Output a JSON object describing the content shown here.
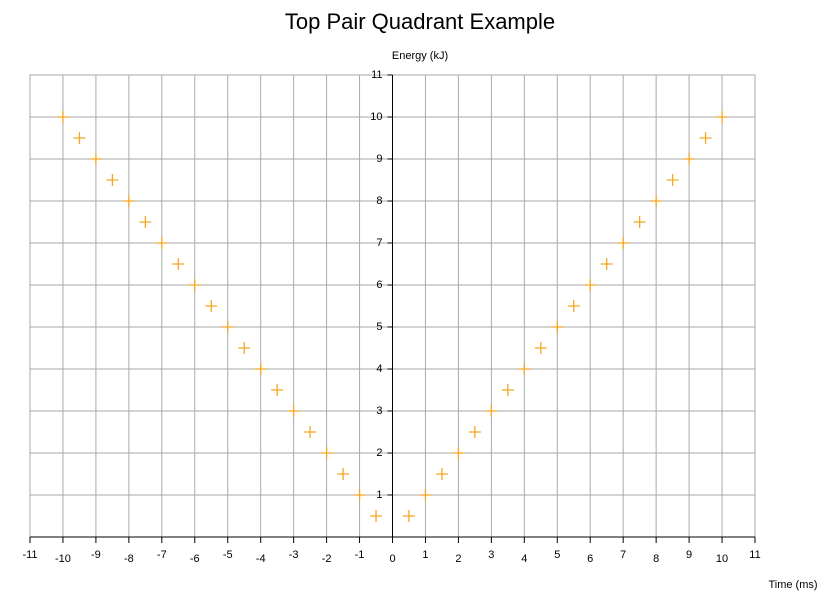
{
  "chart_data": {
    "type": "scatter",
    "title": "Top Pair Quadrant Example",
    "x_label": "Time (ms)",
    "y_label": "Energy (kJ)",
    "x": [
      -10,
      -9.5,
      -9,
      -8.5,
      -8,
      -7.5,
      -7,
      -6.5,
      -6,
      -5.5,
      -5,
      -4.5,
      -4,
      -3.5,
      -3,
      -2.5,
      -2,
      -1.5,
      -1,
      -0.5,
      0.5,
      1,
      1.5,
      2,
      2.5,
      3,
      3.5,
      4,
      4.5,
      5,
      5.5,
      6,
      6.5,
      7,
      7.5,
      8,
      8.5,
      9,
      9.5,
      10
    ],
    "values": [
      10,
      9.5,
      9,
      8.5,
      8,
      7.5,
      7,
      6.5,
      6,
      5.5,
      5,
      4.5,
      4,
      3.5,
      3,
      2.5,
      2,
      1.5,
      1,
      0.5,
      0.5,
      1,
      1.5,
      2,
      2.5,
      3,
      3.5,
      4,
      4.5,
      5,
      5.5,
      6,
      6.5,
      7,
      7.5,
      8,
      8.5,
      9,
      9.5,
      10
    ],
    "color": "#f5a623",
    "xlim": [
      -11,
      11
    ],
    "xticks": [
      -11,
      -10,
      -9,
      -8,
      -7,
      -6,
      -5,
      -4,
      -3,
      -2,
      -1,
      0,
      1,
      2,
      3,
      4,
      5,
      6,
      7,
      8,
      9,
      10,
      11
    ],
    "ylim": [
      0,
      11
    ],
    "yticks": [
      1,
      2,
      3,
      4,
      5,
      6,
      7,
      8,
      9,
      10,
      11
    ],
    "grid": true
  }
}
